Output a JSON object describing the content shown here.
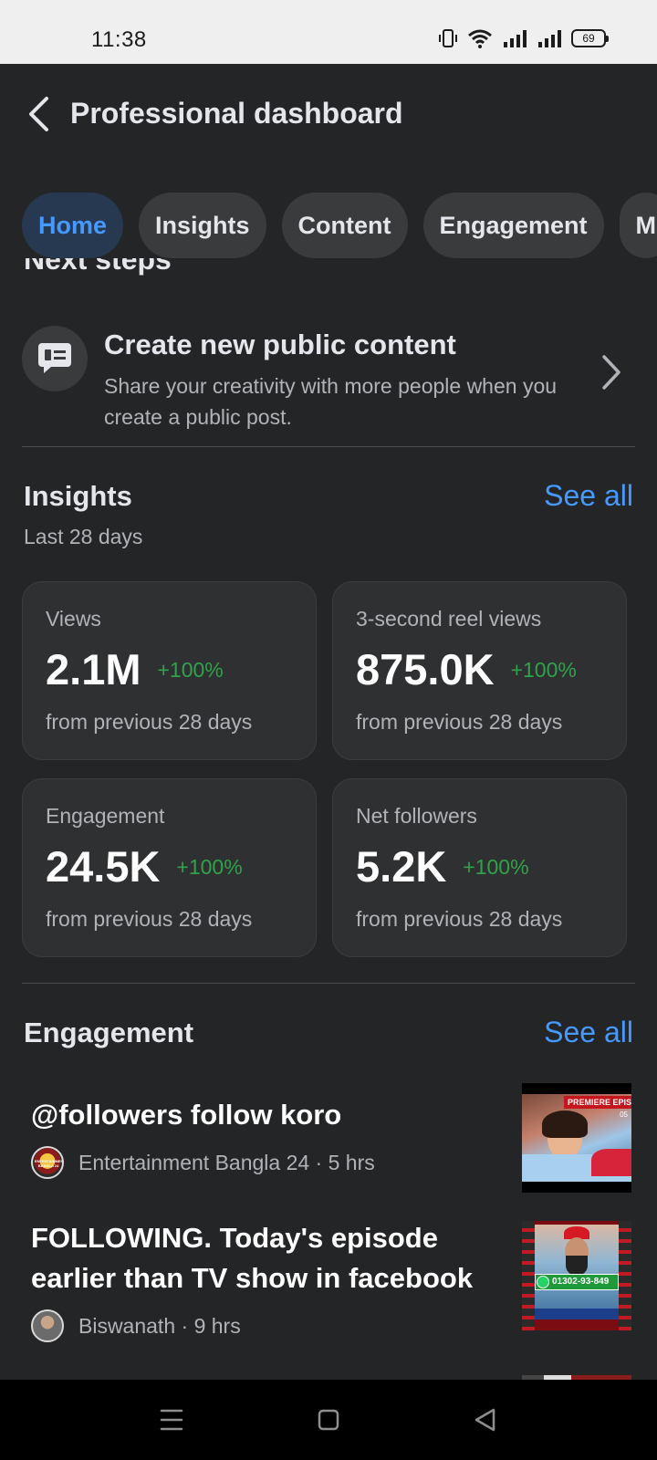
{
  "status_bar": {
    "time": "11:38",
    "battery": "69"
  },
  "header": {
    "title": "Professional dashboard"
  },
  "tabs": [
    {
      "label": "Home",
      "active": true
    },
    {
      "label": "Insights",
      "active": false
    },
    {
      "label": "Content",
      "active": false
    },
    {
      "label": "Engagement",
      "active": false
    },
    {
      "label": "M",
      "active": false
    }
  ],
  "next_steps": {
    "heading": "Next steps",
    "item": {
      "title": "Create new public content",
      "description": "Share your creativity with more people when you create a public post."
    }
  },
  "insights": {
    "title": "Insights",
    "see_all": "See all",
    "period": "Last 28 days",
    "cards": [
      {
        "label": "Views",
        "value": "2.1M",
        "delta": "+100%",
        "foot": "from previous 28 days"
      },
      {
        "label": "3-second reel views",
        "value": "875.0K",
        "delta": "+100%",
        "foot": "from previous 28 days"
      },
      {
        "label": "Engagement",
        "value": "24.5K",
        "delta": "+100%",
        "foot": "from previous 28 days"
      },
      {
        "label": "Net followers",
        "value": "5.2K",
        "delta": "+100%",
        "foot": "from previous 28 days"
      }
    ]
  },
  "engagement": {
    "title": "Engagement",
    "see_all": "See all",
    "posts": [
      {
        "title": "@followers follow koro",
        "author": "Entertainment Bangla 24",
        "time": "5 hrs",
        "thumb_banner": "PREMIERE EPISO",
        "thumb_badge": "05",
        "avatar_text": "ENTERTAINMENT BANGLA 24"
      },
      {
        "title": "FOLLOWING. Today's episode earlier than TV show in facebook",
        "author": "Biswanath",
        "time": "9 hrs",
        "thumb_phone": "01302-93-849"
      }
    ]
  },
  "colors": {
    "accent": "#4599ff",
    "positive": "#31a24c",
    "background": "#242526",
    "card": "#2f3031"
  }
}
